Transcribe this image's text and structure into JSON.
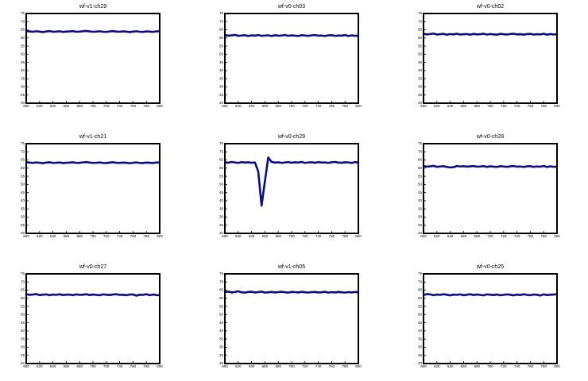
{
  "chart_data": [
    {
      "type": "line",
      "title": "wf-v1-ch29",
      "color": "#0a0a96",
      "xlim": [
        600,
        800
      ],
      "ylim": [
        20,
        75
      ],
      "xticks": [
        600,
        620,
        640,
        660,
        680,
        700,
        720,
        740,
        760,
        780,
        800
      ],
      "yticks": [
        20,
        25,
        30,
        35,
        40,
        45,
        50,
        55,
        60,
        65,
        70,
        75
      ],
      "x": [
        600,
        605,
        610,
        615,
        620,
        625,
        630,
        635,
        640,
        645,
        650,
        655,
        660,
        665,
        670,
        675,
        680,
        685,
        690,
        695,
        700,
        705,
        710,
        715,
        720,
        725,
        730,
        735,
        740,
        745,
        750,
        755,
        760,
        765,
        770,
        775,
        780,
        785,
        790,
        795,
        800
      ],
      "values": [
        64.2,
        64.0,
        63.8,
        64.1,
        63.9,
        63.6,
        64.0,
        64.2,
        63.8,
        63.9,
        64.1,
        63.7,
        63.9,
        64.0,
        64.2,
        63.8,
        63.9,
        64.1,
        64.3,
        64.0,
        63.8,
        63.9,
        64.1,
        63.8,
        63.7,
        64.0,
        64.2,
        63.9,
        63.8,
        64.0,
        63.9,
        63.6,
        63.9,
        64.1,
        63.8,
        63.7,
        64.0,
        63.9,
        63.7,
        64.1,
        64.0
      ]
    },
    {
      "type": "line",
      "title": "wf-v0-ch03",
      "color": "#0a0a96",
      "xlim": [
        600,
        800
      ],
      "ylim": [
        20,
        75
      ],
      "xticks": [
        600,
        620,
        640,
        660,
        680,
        700,
        720,
        740,
        760,
        780,
        800
      ],
      "yticks": [
        20,
        25,
        30,
        35,
        40,
        45,
        50,
        55,
        60,
        65,
        70,
        75
      ],
      "x": [
        600,
        605,
        610,
        615,
        620,
        625,
        630,
        635,
        640,
        645,
        650,
        655,
        660,
        665,
        670,
        675,
        680,
        685,
        690,
        695,
        700,
        705,
        710,
        715,
        720,
        725,
        730,
        735,
        740,
        745,
        750,
        755,
        760,
        765,
        770,
        775,
        780,
        785,
        790,
        795,
        800
      ],
      "values": [
        61.8,
        61.4,
        61.6,
        61.9,
        61.3,
        61.5,
        61.7,
        61.2,
        61.6,
        61.4,
        61.8,
        61.3,
        61.5,
        61.6,
        61.2,
        61.7,
        61.4,
        61.5,
        61.8,
        61.3,
        61.6,
        61.4,
        61.2,
        61.7,
        61.5,
        61.3,
        61.6,
        61.8,
        61.4,
        61.5,
        61.2,
        61.6,
        61.7,
        61.3,
        61.5,
        61.4,
        61.8,
        61.2,
        61.6,
        61.3,
        61.5
      ]
    },
    {
      "type": "line",
      "title": "wf-v0-ch02",
      "color": "#0a0a96",
      "xlim": [
        600,
        800
      ],
      "ylim": [
        20,
        75
      ],
      "xticks": [
        600,
        620,
        640,
        660,
        680,
        700,
        720,
        740,
        760,
        780,
        800
      ],
      "yticks": [
        20,
        25,
        30,
        35,
        40,
        45,
        50,
        55,
        60,
        65,
        70,
        75
      ],
      "x": [
        600,
        605,
        610,
        615,
        620,
        625,
        630,
        635,
        640,
        645,
        650,
        655,
        660,
        665,
        670,
        675,
        680,
        685,
        690,
        695,
        700,
        705,
        710,
        715,
        720,
        725,
        730,
        735,
        740,
        745,
        750,
        755,
        760,
        765,
        770,
        775,
        780,
        785,
        790,
        795,
        800
      ],
      "values": [
        62.6,
        62.2,
        62.4,
        62.7,
        62.1,
        62.3,
        62.5,
        62.0,
        62.4,
        62.2,
        62.6,
        62.1,
        62.3,
        62.4,
        62.0,
        62.5,
        62.2,
        62.3,
        62.6,
        62.1,
        62.4,
        62.2,
        62.0,
        62.5,
        62.3,
        62.1,
        62.4,
        62.6,
        62.2,
        62.3,
        62.0,
        62.4,
        62.5,
        62.1,
        62.3,
        62.2,
        62.6,
        62.0,
        62.4,
        62.1,
        62.3
      ]
    },
    {
      "type": "line",
      "title": "wf-v1-ch21",
      "color": "#0a0a96",
      "xlim": [
        600,
        800
      ],
      "ylim": [
        20,
        75
      ],
      "xticks": [
        600,
        620,
        640,
        660,
        680,
        700,
        720,
        740,
        760,
        780,
        800
      ],
      "yticks": [
        20,
        25,
        30,
        35,
        40,
        45,
        50,
        55,
        60,
        65,
        70,
        75
      ],
      "x": [
        600,
        605,
        610,
        615,
        620,
        625,
        630,
        635,
        640,
        645,
        650,
        655,
        660,
        665,
        670,
        675,
        680,
        685,
        690,
        695,
        700,
        705,
        710,
        715,
        720,
        725,
        730,
        735,
        740,
        745,
        750,
        755,
        760,
        765,
        770,
        775,
        780,
        785,
        790,
        795,
        800
      ],
      "values": [
        63.6,
        63.4,
        63.2,
        63.5,
        63.3,
        63.0,
        63.4,
        63.6,
        63.2,
        63.3,
        63.5,
        63.1,
        63.3,
        63.4,
        63.6,
        63.2,
        63.3,
        63.5,
        63.7,
        63.4,
        63.2,
        63.3,
        63.5,
        63.2,
        63.1,
        63.4,
        63.6,
        63.3,
        63.2,
        63.4,
        63.3,
        63.0,
        63.3,
        63.5,
        63.2,
        63.1,
        63.4,
        63.3,
        63.1,
        63.5,
        63.4
      ]
    },
    {
      "type": "line",
      "title": "wf-v0-ch29",
      "color": "#0a0a96",
      "xlim": [
        600,
        800
      ],
      "ylim": [
        20,
        75
      ],
      "xticks": [
        600,
        620,
        640,
        660,
        680,
        700,
        720,
        740,
        760,
        780,
        800
      ],
      "yticks": [
        20,
        25,
        30,
        35,
        40,
        45,
        50,
        55,
        60,
        65,
        70,
        75
      ],
      "x": [
        600,
        605,
        610,
        615,
        620,
        625,
        630,
        635,
        640,
        645,
        650,
        655,
        660,
        665,
        670,
        675,
        680,
        685,
        690,
        695,
        700,
        705,
        710,
        715,
        720,
        725,
        730,
        735,
        740,
        745,
        750,
        755,
        760,
        765,
        770,
        775,
        780,
        785,
        790,
        795,
        800
      ],
      "values": [
        63.6,
        63.3,
        63.8,
        63.5,
        63.2,
        63.7,
        63.4,
        63.6,
        63.3,
        63.5,
        58.0,
        37.0,
        52.0,
        66.5,
        63.8,
        63.4,
        63.6,
        63.2,
        63.5,
        63.7,
        63.3,
        63.6,
        63.4,
        63.8,
        63.2,
        63.5,
        63.6,
        63.3,
        63.7,
        63.4,
        63.5,
        63.2,
        63.6,
        63.8,
        63.4,
        63.3,
        63.6,
        63.5,
        63.2,
        63.7,
        63.4
      ]
    },
    {
      "type": "line",
      "title": "wf-v0-ch28",
      "color": "#0a0a96",
      "xlim": [
        600,
        800
      ],
      "ylim": [
        20,
        75
      ],
      "xticks": [
        600,
        620,
        640,
        660,
        680,
        700,
        720,
        740,
        760,
        780,
        800
      ],
      "yticks": [
        20,
        25,
        30,
        35,
        40,
        45,
        50,
        55,
        60,
        65,
        70,
        75
      ],
      "x": [
        600,
        605,
        610,
        615,
        620,
        625,
        630,
        635,
        640,
        645,
        650,
        655,
        660,
        665,
        670,
        675,
        680,
        685,
        690,
        695,
        700,
        705,
        710,
        715,
        720,
        725,
        730,
        735,
        740,
        745,
        750,
        755,
        760,
        765,
        770,
        775,
        780,
        785,
        790,
        795,
        800
      ],
      "values": [
        61.3,
        60.9,
        61.1,
        61.4,
        60.8,
        61.0,
        61.2,
        60.7,
        60.4,
        60.6,
        61.3,
        61.0,
        61.2,
        60.9,
        61.1,
        61.3,
        60.9,
        61.0,
        61.2,
        60.8,
        61.1,
        60.9,
        60.7,
        61.2,
        61.0,
        60.8,
        61.1,
        61.3,
        60.9,
        61.0,
        60.7,
        61.1,
        61.2,
        60.8,
        61.0,
        60.9,
        61.3,
        60.7,
        61.1,
        60.8,
        61.0
      ]
    },
    {
      "type": "line",
      "title": "wf-v0-ch27",
      "color": "#0a0a96",
      "xlim": [
        600,
        800
      ],
      "ylim": [
        20,
        75
      ],
      "xticks": [
        600,
        620,
        640,
        660,
        680,
        700,
        720,
        740,
        760,
        780,
        800
      ],
      "yticks": [
        20,
        25,
        30,
        35,
        40,
        45,
        50,
        55,
        60,
        65,
        70,
        75
      ],
      "x": [
        600,
        605,
        610,
        615,
        620,
        625,
        630,
        635,
        640,
        645,
        650,
        655,
        660,
        665,
        670,
        675,
        680,
        685,
        690,
        695,
        700,
        705,
        710,
        715,
        720,
        725,
        730,
        735,
        740,
        745,
        750,
        755,
        760,
        765,
        770,
        775,
        780,
        785,
        790,
        795,
        800
      ],
      "values": [
        62.5,
        62.1,
        62.3,
        62.6,
        62.0,
        62.2,
        62.4,
        61.9,
        62.3,
        62.1,
        62.5,
        62.0,
        62.2,
        62.3,
        61.9,
        62.4,
        62.1,
        62.2,
        62.5,
        62.0,
        62.3,
        62.1,
        61.9,
        62.4,
        62.2,
        62.0,
        62.3,
        62.5,
        62.1,
        62.2,
        61.9,
        62.3,
        62.4,
        61.6,
        62.2,
        62.1,
        62.5,
        61.9,
        62.3,
        62.0,
        61.8
      ]
    },
    {
      "type": "line",
      "title": "wf-v1-ch05",
      "color": "#0a0a96",
      "xlim": [
        600,
        800
      ],
      "ylim": [
        20,
        75
      ],
      "xticks": [
        600,
        620,
        640,
        660,
        680,
        700,
        720,
        740,
        760,
        780,
        800
      ],
      "yticks": [
        20,
        25,
        30,
        35,
        40,
        45,
        50,
        55,
        60,
        65,
        70,
        75
      ],
      "x": [
        600,
        605,
        610,
        615,
        620,
        625,
        630,
        635,
        640,
        645,
        650,
        655,
        660,
        665,
        670,
        675,
        680,
        685,
        690,
        695,
        700,
        705,
        710,
        715,
        720,
        725,
        730,
        735,
        740,
        745,
        750,
        755,
        760,
        765,
        770,
        775,
        780,
        785,
        790,
        795,
        800
      ],
      "values": [
        63.8,
        64.1,
        63.6,
        63.9,
        64.3,
        63.7,
        63.5,
        63.9,
        64.0,
        63.6,
        63.8,
        64.1,
        63.5,
        63.7,
        63.9,
        63.6,
        63.8,
        64.0,
        63.7,
        63.5,
        63.9,
        63.8,
        63.6,
        64.0,
        63.7,
        63.5,
        63.8,
        63.9,
        63.6,
        63.7,
        64.0,
        63.5,
        63.8,
        63.6,
        63.9,
        63.7,
        63.5,
        63.8,
        63.6,
        63.9,
        63.7
      ]
    },
    {
      "type": "line",
      "title": "wf-v0-ch25",
      "color": "#0a0a96",
      "xlim": [
        600,
        800
      ],
      "ylim": [
        20,
        75
      ],
      "xticks": [
        600,
        620,
        640,
        660,
        680,
        700,
        720,
        740,
        760,
        780,
        800
      ],
      "yticks": [
        20,
        25,
        30,
        35,
        40,
        45,
        50,
        55,
        60,
        65,
        70,
        75
      ],
      "x": [
        600,
        605,
        610,
        615,
        620,
        625,
        630,
        635,
        640,
        645,
        650,
        655,
        660,
        665,
        670,
        675,
        680,
        685,
        690,
        695,
        700,
        705,
        710,
        715,
        720,
        725,
        730,
        735,
        740,
        745,
        750,
        755,
        760,
        765,
        770,
        775,
        780,
        785,
        790,
        795,
        800
      ],
      "values": [
        62.0,
        62.6,
        62.4,
        61.9,
        62.3,
        62.1,
        62.5,
        62.2,
        61.8,
        62.3,
        62.1,
        62.4,
        61.9,
        62.2,
        62.5,
        62.0,
        62.3,
        62.1,
        61.8,
        62.4,
        62.2,
        62.0,
        62.3,
        61.9,
        62.1,
        62.4,
        62.2,
        61.8,
        62.3,
        62.0,
        62.5,
        62.1,
        61.9,
        62.3,
        62.2,
        61.7,
        62.4,
        62.0,
        62.2,
        62.3,
        62.5
      ]
    }
  ]
}
